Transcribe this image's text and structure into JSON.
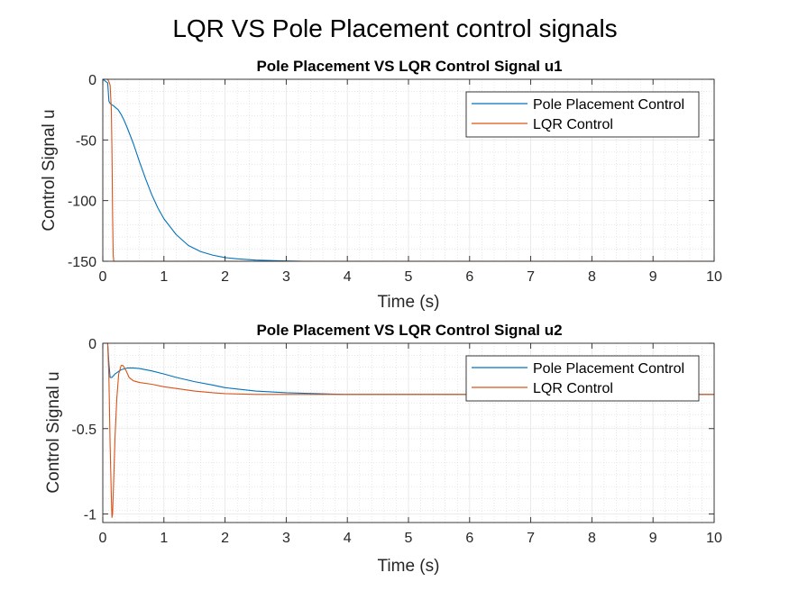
{
  "figure_title": "LQR VS Pole Placement control signals",
  "chart_data": [
    {
      "type": "line",
      "title": "Pole Placement VS LQR Control Signal u1",
      "xlabel": "Time (s)",
      "ylabel": "Control Signal u",
      "xlim": [
        0,
        10
      ],
      "ylim": [
        -150,
        0
      ],
      "xticks": [
        0,
        1,
        2,
        3,
        4,
        5,
        6,
        7,
        8,
        9,
        10
      ],
      "yticks": [
        0,
        -50,
        -100,
        -150
      ],
      "ytick_labels": [
        "0",
        "-50",
        "-100",
        "-150"
      ],
      "grid": true,
      "minor_grid": true,
      "legend_position": "top-right",
      "series": [
        {
          "name": "Pole Placement Control",
          "color": "#0072BD",
          "x": [
            0,
            0.08,
            0.1,
            0.12,
            0.15,
            0.18,
            0.2,
            0.25,
            0.3,
            0.35,
            0.4,
            0.5,
            0.6,
            0.7,
            0.8,
            0.9,
            1.0,
            1.2,
            1.4,
            1.6,
            1.8,
            2.0,
            2.2,
            2.5,
            2.8,
            3.0,
            3.3,
            3.6,
            4.0,
            5.0,
            6.0,
            7.0,
            8.0,
            9.0,
            10.0
          ],
          "y": [
            0,
            -3,
            -18,
            -20,
            -21,
            -22,
            -23,
            -25,
            -29,
            -34,
            -40,
            -53,
            -68,
            -82,
            -95,
            -106,
            -115,
            -128,
            -137,
            -142,
            -145,
            -147,
            -148,
            -149,
            -149.5,
            -149.8,
            -150,
            -150,
            -150,
            -150,
            -150,
            -150,
            -150,
            -150,
            -150
          ]
        },
        {
          "name": "LQR Control",
          "color": "#D95319",
          "x": [
            0,
            0.08,
            0.1,
            0.12,
            0.14,
            0.15,
            0.16,
            0.17,
            0.18,
            0.5,
            1.0,
            2.0,
            3.0,
            4.0,
            5.0,
            6.0,
            7.0,
            8.0,
            9.0,
            10.0
          ],
          "y": [
            0,
            0,
            -2,
            -5,
            -25,
            -60,
            -110,
            -145,
            -150,
            -150,
            -150,
            -150,
            -150,
            -150,
            -150,
            -150,
            -150,
            -150,
            -150,
            -150
          ]
        }
      ]
    },
    {
      "type": "line",
      "title": "Pole Placement VS LQR Control Signal u2",
      "xlabel": "Time (s)",
      "ylabel": "Control Signal u",
      "xlim": [
        0,
        10
      ],
      "ylim": [
        -1.05,
        0
      ],
      "xticks": [
        0,
        1,
        2,
        3,
        4,
        5,
        6,
        7,
        8,
        9,
        10
      ],
      "yticks": [
        0,
        -0.5,
        -1
      ],
      "ytick_labels": [
        "0",
        "-0.5",
        "-1"
      ],
      "grid": true,
      "minor_grid": true,
      "legend_position": "top-right",
      "series": [
        {
          "name": "Pole Placement Control",
          "color": "#0072BD",
          "x": [
            0,
            0.08,
            0.1,
            0.12,
            0.15,
            0.2,
            0.3,
            0.4,
            0.5,
            0.6,
            0.8,
            1.0,
            1.2,
            1.5,
            1.8,
            2.0,
            2.5,
            3.0,
            3.5,
            4.0,
            5.0,
            6.0,
            7.0,
            8.0,
            9.0,
            10.0
          ],
          "y": [
            0,
            0,
            -0.12,
            -0.2,
            -0.2,
            -0.18,
            -0.155,
            -0.145,
            -0.145,
            -0.148,
            -0.162,
            -0.18,
            -0.2,
            -0.225,
            -0.245,
            -0.26,
            -0.28,
            -0.29,
            -0.295,
            -0.3,
            -0.3,
            -0.3,
            -0.3,
            -0.3,
            -0.3,
            -0.3
          ]
        },
        {
          "name": "LQR Control",
          "color": "#D95319",
          "x": [
            0,
            0.08,
            0.1,
            0.12,
            0.14,
            0.15,
            0.16,
            0.18,
            0.2,
            0.23,
            0.26,
            0.3,
            0.33,
            0.38,
            0.43,
            0.5,
            0.6,
            0.8,
            1.0,
            1.2,
            1.5,
            1.8,
            2.0,
            2.5,
            3.0,
            4.0,
            5.0,
            6.0,
            7.0,
            8.0,
            9.0,
            10.0
          ],
          "y": [
            0,
            0,
            -0.2,
            -0.6,
            -0.9,
            -1.02,
            -1.0,
            -0.78,
            -0.55,
            -0.32,
            -0.18,
            -0.13,
            -0.13,
            -0.16,
            -0.2,
            -0.22,
            -0.23,
            -0.24,
            -0.255,
            -0.265,
            -0.28,
            -0.29,
            -0.295,
            -0.3,
            -0.3,
            -0.3,
            -0.3,
            -0.3,
            -0.3,
            -0.3,
            -0.3,
            -0.3
          ]
        }
      ]
    }
  ]
}
